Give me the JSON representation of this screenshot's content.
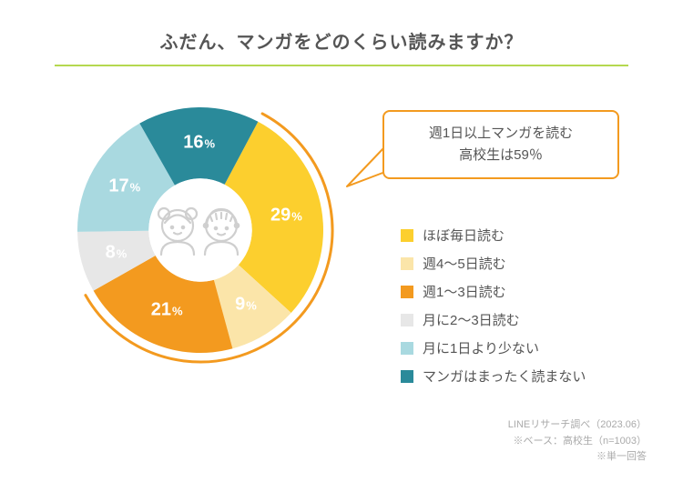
{
  "title": "ふだん、マンガをどのくらい読みますか？",
  "chart": {
    "type": "donut",
    "background_color": "#ffffff",
    "underline_color": "#b5d84f",
    "inner_radius_ratio": 0.42,
    "outer_arc_color": "#f39a1f",
    "outer_arc_width": 3,
    "segments": [
      {
        "label": "ほぼ毎日読む",
        "value": 29,
        "color": "#fccf2e",
        "text_color": "#ffffff"
      },
      {
        "label": "週4～5日読む",
        "value": 9,
        "color": "#fbe5a9",
        "text_color": "#ffffff"
      },
      {
        "label": "週1～3日読む",
        "value": 21,
        "color": "#f39a1f",
        "text_color": "#ffffff"
      },
      {
        "label": "月に2～3日読む",
        "value": 8,
        "color": "#e7e7e7",
        "text_color": "#ffffff"
      },
      {
        "label": "月に1日より少ない",
        "value": 17,
        "color": "#a9d9e0",
        "text_color": "#ffffff"
      },
      {
        "label": "マンガはまったく読まない",
        "value": 16,
        "color": "#2a8a9a",
        "text_color": "#ffffff"
      }
    ],
    "start_angle_deg": -62,
    "highlight_sum_segments": [
      0,
      1,
      2
    ],
    "highlight_sum_value": 59
  },
  "callout": {
    "line1": "週1日以上マンガを読む",
    "line2": "高校生は59％",
    "border_color": "#f39a1f"
  },
  "center_icon_color": "#cfcfcf",
  "footer": {
    "line1": "LINEリサーチ調べ（2023.06）",
    "line2": "※ベース：高校生（n=1003）",
    "line3": "※単一回答"
  }
}
